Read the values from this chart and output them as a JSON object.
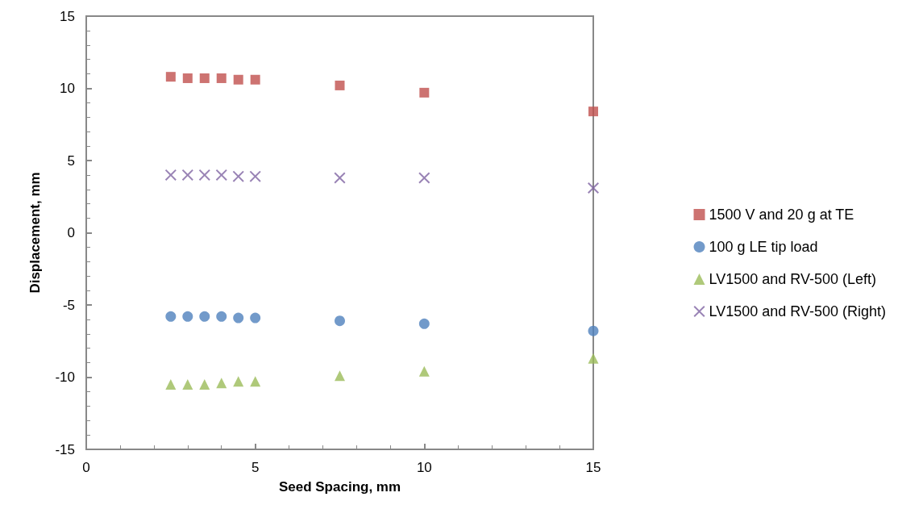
{
  "chart_data": {
    "type": "scatter",
    "xlabel": "Seed Spacing, mm",
    "ylabel": "Displacement, mm",
    "xlim": [
      0,
      15
    ],
    "xticks": [
      0,
      5,
      10,
      15
    ],
    "ylim": [
      -15,
      15
    ],
    "yticks": [
      -15,
      -10,
      -5,
      0,
      5,
      10,
      15
    ],
    "grid": false,
    "legend": "right",
    "x": [
      2.5,
      3,
      3.5,
      4,
      4.5,
      5,
      7.5,
      10,
      15
    ],
    "series": [
      {
        "name": "1500 V and 20 g at TE",
        "color": "#c0504d",
        "marker": "square",
        "values": [
          10.8,
          10.7,
          10.7,
          10.7,
          10.6,
          10.6,
          10.2,
          9.7,
          8.4
        ]
      },
      {
        "name": "100 g LE tip load",
        "color": "#4f81bd",
        "marker": "circle",
        "values": [
          -5.8,
          -5.8,
          -5.8,
          -5.8,
          -5.9,
          -5.9,
          -6.1,
          -6.3,
          -6.8
        ]
      },
      {
        "name": "LV1500 and RV-500 (Left)",
        "color": "#9bbb59",
        "marker": "triangle",
        "values": [
          -10.5,
          -10.5,
          -10.5,
          -10.4,
          -10.3,
          -10.3,
          -9.9,
          -9.6,
          -8.7
        ]
      },
      {
        "name": "LV1500 and RV-500 (Right)",
        "color": "#8064a2",
        "marker": "cross",
        "values": [
          4.0,
          4.0,
          4.0,
          4.0,
          3.9,
          3.9,
          3.8,
          3.8,
          3.1
        ]
      }
    ]
  }
}
